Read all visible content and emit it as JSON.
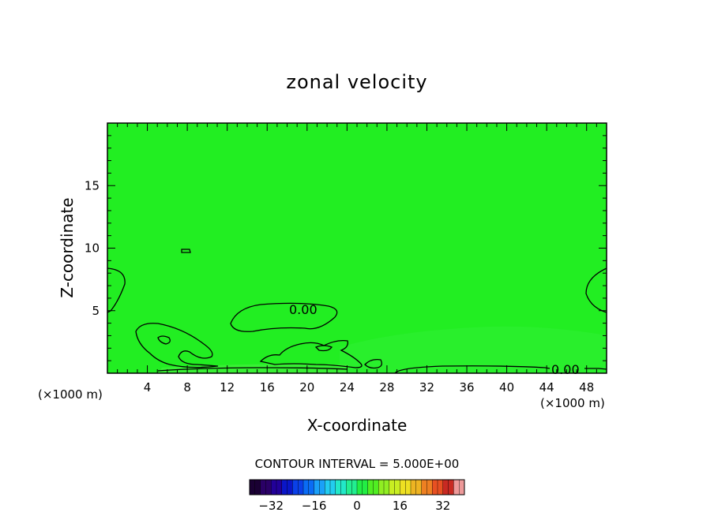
{
  "chart_data": {
    "type": "heatmap",
    "title": "zonal velocity",
    "xlabel": "X-coordinate",
    "ylabel": "Z-coordinate",
    "x_unit": "(×1000 m)",
    "xlim": [
      0,
      50
    ],
    "ylim": [
      0,
      20
    ],
    "x_ticks": [
      4,
      8,
      12,
      16,
      20,
      24,
      28,
      32,
      36,
      40,
      44,
      48
    ],
    "y_ticks": [
      5,
      10,
      15
    ],
    "contour_labels": [
      "0.00",
      "0.00"
    ],
    "field_color": "#22ee22",
    "contour_color": "#000000",
    "footer": "CONTOUR INTERVAL = 5.000E+00",
    "colorbar": {
      "range": [
        -40,
        40
      ],
      "step": 2,
      "ticks": [
        -32,
        -16,
        0,
        16,
        32
      ],
      "colors": [
        "#1a0033",
        "#2a0066",
        "#220099",
        "#0a16c8",
        "#0a40e8",
        "#0a6cf5",
        "#1aa0f8",
        "#22ccf0",
        "#22e8c8",
        "#22ee90",
        "#22ee44",
        "#50ee22",
        "#90ee22",
        "#c8ee22",
        "#eee022",
        "#eeb422",
        "#ee8022",
        "#e85022",
        "#c82a22",
        "#ee9a9a"
      ]
    }
  }
}
